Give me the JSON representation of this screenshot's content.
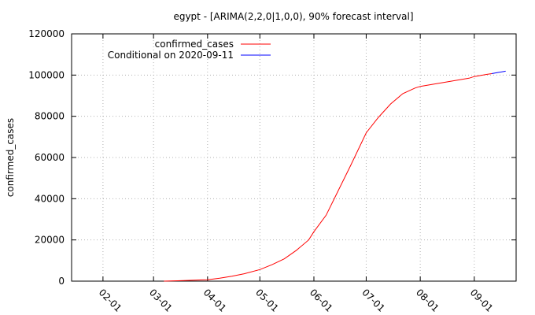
{
  "chart_data": {
    "type": "line",
    "title": "egypt -  [ARIMA(2,2,0|1,0,0), 90% forecast interval]",
    "xlabel": "",
    "ylabel": "confirmed_cases",
    "x_axis_type": "date",
    "xlim": [
      "2020-01-14",
      "2020-09-25"
    ],
    "ylim": [
      0,
      120000
    ],
    "x_ticks": [
      {
        "date": "2020-02-01",
        "label": "02-01"
      },
      {
        "date": "2020-03-01",
        "label": "03-01"
      },
      {
        "date": "2020-04-01",
        "label": "04-01"
      },
      {
        "date": "2020-05-01",
        "label": "05-01"
      },
      {
        "date": "2020-06-01",
        "label": "06-01"
      },
      {
        "date": "2020-07-01",
        "label": "07-01"
      },
      {
        "date": "2020-08-01",
        "label": "08-01"
      },
      {
        "date": "2020-09-01",
        "label": "09-01"
      }
    ],
    "y_ticks": [
      0,
      20000,
      40000,
      60000,
      80000,
      100000,
      120000
    ],
    "y_tick_labels": [
      "0",
      "20000",
      "40000",
      "60000",
      "80000",
      "100000",
      "120000"
    ],
    "grid": true,
    "legend_position": "top-left",
    "series": [
      {
        "name": "confirmed_cases",
        "color": "#ff0000",
        "points": [
          {
            "x": "2020-03-07",
            "y": 0
          },
          {
            "x": "2020-03-15",
            "y": 200
          },
          {
            "x": "2020-03-25",
            "y": 500
          },
          {
            "x": "2020-04-01",
            "y": 700
          },
          {
            "x": "2020-04-08",
            "y": 1400
          },
          {
            "x": "2020-04-15",
            "y": 2400
          },
          {
            "x": "2020-04-22",
            "y": 3600
          },
          {
            "x": "2020-05-01",
            "y": 5600
          },
          {
            "x": "2020-05-08",
            "y": 8000
          },
          {
            "x": "2020-05-15",
            "y": 10800
          },
          {
            "x": "2020-05-22",
            "y": 15000
          },
          {
            "x": "2020-05-29",
            "y": 20000
          },
          {
            "x": "2020-06-01",
            "y": 24000
          },
          {
            "x": "2020-06-08",
            "y": 32000
          },
          {
            "x": "2020-06-15",
            "y": 44000
          },
          {
            "x": "2020-06-22",
            "y": 56000
          },
          {
            "x": "2020-07-01",
            "y": 72000
          },
          {
            "x": "2020-07-08",
            "y": 79500
          },
          {
            "x": "2020-07-15",
            "y": 86000
          },
          {
            "x": "2020-07-22",
            "y": 91000
          },
          {
            "x": "2020-07-29",
            "y": 93700
          },
          {
            "x": "2020-08-01",
            "y": 94500
          },
          {
            "x": "2020-08-08",
            "y": 95500
          },
          {
            "x": "2020-08-15",
            "y": 96500
          },
          {
            "x": "2020-08-22",
            "y": 97500
          },
          {
            "x": "2020-08-29",
            "y": 98500
          },
          {
            "x": "2020-09-01",
            "y": 99300
          },
          {
            "x": "2020-09-08",
            "y": 100300
          },
          {
            "x": "2020-09-11",
            "y": 100700
          }
        ]
      },
      {
        "name": "Conditional on 2020-09-11",
        "color": "#0000ff",
        "points": [
          {
            "x": "2020-09-11",
            "y": 100700
          },
          {
            "x": "2020-09-15",
            "y": 101300
          },
          {
            "x": "2020-09-19",
            "y": 101900
          }
        ]
      }
    ]
  }
}
